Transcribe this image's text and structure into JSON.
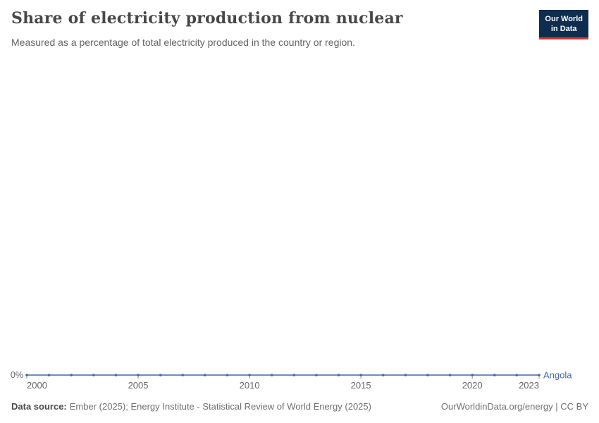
{
  "logo": {
    "line1": "Our World",
    "line2": "in Data"
  },
  "chart_data": {
    "type": "line",
    "title": "Share of electricity production from nuclear",
    "subtitle": "Measured as a percentage of total electricity produced in the country or region.",
    "xlabel": "",
    "ylabel": "",
    "unit": "%",
    "grid": false,
    "legend": "end-of-line-label",
    "x": [
      2000,
      2001,
      2002,
      2003,
      2004,
      2005,
      2006,
      2007,
      2008,
      2009,
      2010,
      2011,
      2012,
      2013,
      2014,
      2015,
      2016,
      2017,
      2018,
      2019,
      2020,
      2021,
      2022,
      2023
    ],
    "series": [
      {
        "name": "Angola",
        "color": "#4467a8",
        "values": [
          0,
          0,
          0,
          0,
          0,
          0,
          0,
          0,
          0,
          0,
          0,
          0,
          0,
          0,
          0,
          0,
          0,
          0,
          0,
          0,
          0,
          0,
          0,
          0
        ]
      }
    ],
    "xlim": [
      2000,
      2023
    ],
    "ylim": [
      0,
      0
    ],
    "x_tick_labels": [
      2000,
      2005,
      2010,
      2015,
      2020,
      2023
    ],
    "y_tick_labels": [
      "0%"
    ]
  },
  "footer": {
    "source_label": "Data source:",
    "source_text": "Ember (2025); Energy Institute - Statistical Review of World Energy (2025)",
    "url": "OurWorldinData.org/energy",
    "separator": " | ",
    "license": "CC BY"
  },
  "colors": {
    "line": "#4467a8",
    "axis_text": "#666666",
    "tick": "#8f8f8f",
    "title_text": "#474747",
    "subtitle_text": "#636363",
    "logo_bg": "#0f2d4f",
    "logo_accent": "#d83731"
  }
}
